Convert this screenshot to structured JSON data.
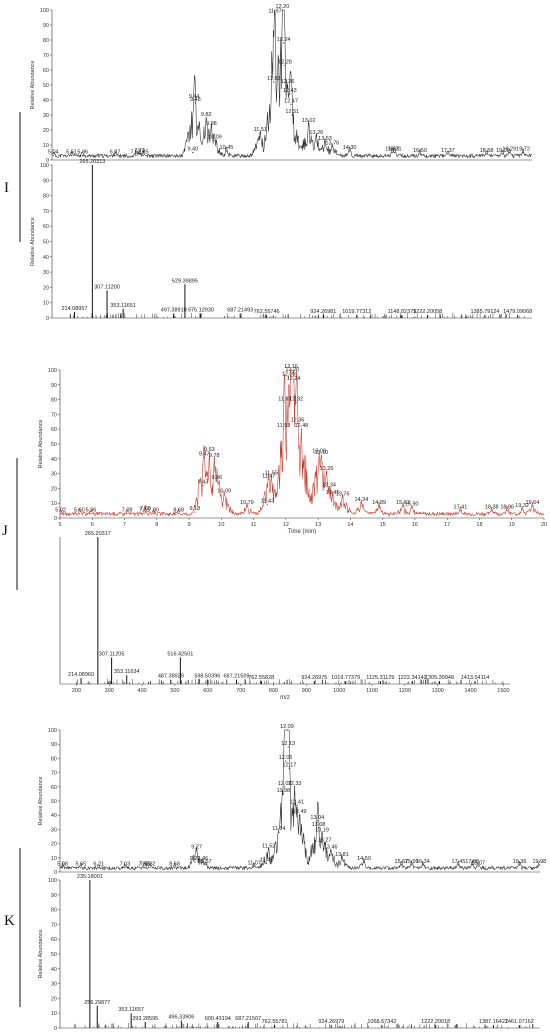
{
  "panels": [
    {
      "letter": "I",
      "bracket": "left"
    },
    {
      "letter": "J",
      "bracket": "left"
    },
    {
      "letter": "K",
      "bracket": "left"
    }
  ],
  "chart_data": [
    {
      "type": "line",
      "panel": "I",
      "role": "chromatogram",
      "ylabel": "Relative Abundance",
      "xlabel": "",
      "color": "#2a2a2a",
      "xlim": [
        5,
        20
      ],
      "ylim": [
        0,
        100
      ],
      "yticks": [
        0,
        10,
        20,
        30,
        40,
        50,
        60,
        70,
        80,
        90,
        100
      ],
      "xticks": [],
      "peaks": [
        {
          "x": 5.04,
          "y": 3,
          "label": "5.04"
        },
        {
          "x": 5.61,
          "y": 3,
          "label": "5.61"
        },
        {
          "x": 5.96,
          "y": 3,
          "label": "5.96"
        },
        {
          "x": 6.97,
          "y": 3,
          "label": "6.97"
        },
        {
          "x": 7.62,
          "y": 3,
          "label": "7.62"
        },
        {
          "x": 7.73,
          "y": 4,
          "label": "7.73"
        },
        {
          "x": 7.85,
          "y": 3,
          "label": "7.85"
        },
        {
          "x": 9.4,
          "y": 5,
          "label": "9.40"
        },
        {
          "x": 9.44,
          "y": 40,
          "label": "9.44"
        },
        {
          "x": 9.48,
          "y": 38,
          "label": "9.48"
        },
        {
          "x": 9.82,
          "y": 28,
          "label": "9.82"
        },
        {
          "x": 9.98,
          "y": 22,
          "label": "9.98"
        },
        {
          "x": 10.09,
          "y": 13,
          "label": "10.09"
        },
        {
          "x": 10.45,
          "y": 6,
          "label": "10.45"
        },
        {
          "x": 11.51,
          "y": 18,
          "label": "11.51"
        },
        {
          "x": 11.93,
          "y": 52,
          "label": "11.93"
        },
        {
          "x": 11.97,
          "y": 97,
          "label": "11.97"
        },
        {
          "x": 12.2,
          "y": 100,
          "label": "12.20"
        },
        {
          "x": 12.24,
          "y": 78,
          "label": "12.24"
        },
        {
          "x": 12.28,
          "y": 63,
          "label": "12.28"
        },
        {
          "x": 12.36,
          "y": 50,
          "label": "12.36"
        },
        {
          "x": 12.43,
          "y": 44,
          "label": "12.43"
        },
        {
          "x": 12.47,
          "y": 37,
          "label": "12.47"
        },
        {
          "x": 12.51,
          "y": 30,
          "label": "12.51"
        },
        {
          "x": 13.02,
          "y": 24,
          "label": "13.02"
        },
        {
          "x": 13.26,
          "y": 16,
          "label": "13.26"
        },
        {
          "x": 13.53,
          "y": 12,
          "label": "13.53"
        },
        {
          "x": 13.76,
          "y": 9,
          "label": "13.76"
        },
        {
          "x": 14.3,
          "y": 6,
          "label": "14.30"
        },
        {
          "x": 15.63,
          "y": 5,
          "label": "15.63"
        },
        {
          "x": 15.71,
          "y": 5,
          "label": "15.71"
        },
        {
          "x": 16.5,
          "y": 4,
          "label": "16.50"
        },
        {
          "x": 17.37,
          "y": 4,
          "label": "17.37"
        },
        {
          "x": 18.58,
          "y": 4,
          "label": "18.58"
        },
        {
          "x": 19.09,
          "y": 4,
          "label": "19.09"
        },
        {
          "x": 19.29,
          "y": 5,
          "label": "19.29"
        },
        {
          "x": 19.72,
          "y": 5,
          "label": "19.72"
        }
      ]
    },
    {
      "type": "bar",
      "panel": "I",
      "role": "mass-spectrum",
      "ylabel": "Relative Abundance",
      "xlabel": "",
      "color": "#111111",
      "xlim": [
        150,
        1520
      ],
      "ylim": [
        0,
        100
      ],
      "yticks": [
        0,
        10,
        20,
        30,
        40,
        50,
        60,
        70,
        80,
        90,
        100
      ],
      "xticks": [],
      "peaks": [
        {
          "x": 214.08957,
          "y": 4,
          "label": "214.08957"
        },
        {
          "x": 265.20313,
          "y": 100,
          "label": "265.20313"
        },
        {
          "x": 307.112,
          "y": 18,
          "label": "307.11200"
        },
        {
          "x": 353.11651,
          "y": 6,
          "label": "353.11651"
        },
        {
          "x": 497.3891,
          "y": 3,
          "label": "497.38910"
        },
        {
          "x": 529.39895,
          "y": 22,
          "label": "529.39895"
        },
        {
          "x": 575.1293,
          "y": 3,
          "label": "575.12930"
        },
        {
          "x": 687.21493,
          "y": 3,
          "label": "687.21493"
        },
        {
          "x": 762.55746,
          "y": 2,
          "label": "762.55746"
        },
        {
          "x": 924.26981,
          "y": 2,
          "label": "924.26981"
        },
        {
          "x": 1019.77312,
          "y": 2,
          "label": "1019.77312"
        },
        {
          "x": 1148.82379,
          "y": 2,
          "label": "1148.82379"
        },
        {
          "x": 1222.20058,
          "y": 2,
          "label": "1222.20058"
        },
        {
          "x": 1385.79124,
          "y": 2,
          "label": "1385.79124"
        },
        {
          "x": 1479.09068,
          "y": 2,
          "label": "1479.09068"
        }
      ]
    },
    {
      "type": "line",
      "panel": "J",
      "role": "chromatogram",
      "ylabel": "Relative Abundance",
      "xlabel": "Time (min)",
      "color": "#c0392b",
      "xlim": [
        5,
        20
      ],
      "ylim": [
        0,
        100
      ],
      "yticks": [
        0,
        10,
        20,
        30,
        40,
        50,
        60,
        70,
        80,
        90,
        100
      ],
      "xticks": [
        5,
        6,
        7,
        8,
        9,
        10,
        11,
        12,
        13,
        14,
        15,
        16,
        17,
        18,
        19,
        20
      ],
      "peaks": [
        {
          "x": 5.02,
          "y": 3,
          "label": "5.02"
        },
        {
          "x": 5.6,
          "y": 3,
          "label": "5.60"
        },
        {
          "x": 5.96,
          "y": 3,
          "label": "5.96"
        },
        {
          "x": 7.08,
          "y": 3,
          "label": "7.08"
        },
        {
          "x": 7.61,
          "y": 3,
          "label": "7.61"
        },
        {
          "x": 7.65,
          "y": 4,
          "label": "7.65"
        },
        {
          "x": 7.9,
          "y": 3,
          "label": "7.90"
        },
        {
          "x": 8.68,
          "y": 3,
          "label": "8.68"
        },
        {
          "x": 9.18,
          "y": 4,
          "label": "9.18"
        },
        {
          "x": 9.43,
          "y": 22,
          "label": "9.43"
        },
        {
          "x": 9.47,
          "y": 41,
          "label": "9.47"
        },
        {
          "x": 9.63,
          "y": 44,
          "label": "9.63"
        },
        {
          "x": 9.78,
          "y": 40,
          "label": "9.78"
        },
        {
          "x": 9.86,
          "y": 25,
          "label": "9.86"
        },
        {
          "x": 10.09,
          "y": 16,
          "label": "10.09"
        },
        {
          "x": 10.79,
          "y": 8,
          "label": "10.79"
        },
        {
          "x": 11.43,
          "y": 9,
          "label": "11.43"
        },
        {
          "x": 11.47,
          "y": 26,
          "label": "11.47"
        },
        {
          "x": 11.55,
          "y": 28,
          "label": "11.55"
        },
        {
          "x": 11.93,
          "y": 60,
          "label": "11.93"
        },
        {
          "x": 11.97,
          "y": 78,
          "label": "11.97"
        },
        {
          "x": 12.09,
          "y": 95,
          "label": "12.09"
        },
        {
          "x": 12.16,
          "y": 100,
          "label": "12.16"
        },
        {
          "x": 12.2,
          "y": 98,
          "label": "12.20"
        },
        {
          "x": 12.24,
          "y": 92,
          "label": "12.24"
        },
        {
          "x": 12.32,
          "y": 78,
          "label": "12.32"
        },
        {
          "x": 12.36,
          "y": 64,
          "label": "12.36"
        },
        {
          "x": 12.48,
          "y": 60,
          "label": "12.48"
        },
        {
          "x": 13.03,
          "y": 43,
          "label": "13.03"
        },
        {
          "x": 13.1,
          "y": 42,
          "label": "13.10"
        },
        {
          "x": 13.26,
          "y": 31,
          "label": "13.26"
        },
        {
          "x": 13.34,
          "y": 20,
          "label": "13.34"
        },
        {
          "x": 13.45,
          "y": 15,
          "label": "13.45"
        },
        {
          "x": 13.76,
          "y": 14,
          "label": "13.76"
        },
        {
          "x": 14.34,
          "y": 10,
          "label": "14.34"
        },
        {
          "x": 14.89,
          "y": 8,
          "label": "14.89"
        },
        {
          "x": 15.63,
          "y": 8,
          "label": "15.63"
        },
        {
          "x": 15.9,
          "y": 7,
          "label": "15.90"
        },
        {
          "x": 17.41,
          "y": 5,
          "label": "17.41"
        },
        {
          "x": 18.38,
          "y": 5,
          "label": "18.38"
        },
        {
          "x": 18.86,
          "y": 5,
          "label": "18.86"
        },
        {
          "x": 19.32,
          "y": 6,
          "label": "19.32"
        },
        {
          "x": 19.64,
          "y": 8,
          "label": "19.64"
        }
      ]
    },
    {
      "type": "bar",
      "panel": "J",
      "role": "mass-spectrum",
      "ylabel": "",
      "xlabel": "m/z",
      "color": "#111111",
      "xlim": [
        150,
        1520
      ],
      "ylim": [
        0,
        100
      ],
      "yticks": [],
      "xticks": [
        200,
        300,
        400,
        500,
        600,
        700,
        800,
        900,
        1000,
        1100,
        1200,
        1300,
        1400,
        1500
      ],
      "peaks": [
        {
          "x": 214.0896,
          "y": 4,
          "label": "214.08960"
        },
        {
          "x": 265.20317,
          "y": 100,
          "label": "265.20317"
        },
        {
          "x": 307.11205,
          "y": 18,
          "label": "307.11205"
        },
        {
          "x": 353.11634,
          "y": 6,
          "label": "353.11634"
        },
        {
          "x": 487.38929,
          "y": 3,
          "label": "487.38929"
        },
        {
          "x": 516.42501,
          "y": 18,
          "label": "516.42501"
        },
        {
          "x": 598.50396,
          "y": 3,
          "label": "598.50396"
        },
        {
          "x": 687.21509,
          "y": 3,
          "label": "687.21509"
        },
        {
          "x": 762.55828,
          "y": 2,
          "label": "762.55828"
        },
        {
          "x": 924.26975,
          "y": 2,
          "label": "924.26975"
        },
        {
          "x": 1019.77379,
          "y": 2,
          "label": "1019.77379"
        },
        {
          "x": 1125.31129,
          "y": 2,
          "label": "1125.31129"
        },
        {
          "x": 1222.34142,
          "y": 2,
          "label": "1222.34142"
        },
        {
          "x": 1305.39948,
          "y": 2,
          "label": "1305.39948"
        },
        {
          "x": 1413.54114,
          "y": 2,
          "label": "1413.54114"
        }
      ]
    },
    {
      "type": "line",
      "panel": "K",
      "role": "chromatogram",
      "ylabel": "Relative Abundance",
      "xlabel": "",
      "color": "#2a2a2a",
      "xlim": [
        5,
        20
      ],
      "ylim": [
        0,
        100
      ],
      "yticks": [
        0,
        10,
        20,
        30,
        40,
        50,
        60,
        70,
        80,
        90,
        100
      ],
      "xticks": [],
      "peaks": [
        {
          "x": 5.08,
          "y": 3,
          "label": "5.08"
        },
        {
          "x": 5.65,
          "y": 3,
          "label": "5.65"
        },
        {
          "x": 6.21,
          "y": 3,
          "label": "6.21"
        },
        {
          "x": 7.03,
          "y": 3,
          "label": "7.03"
        },
        {
          "x": 7.62,
          "y": 3,
          "label": "7.62"
        },
        {
          "x": 7.66,
          "y": 3,
          "label": "7.66"
        },
        {
          "x": 7.82,
          "y": 3,
          "label": "7.82"
        },
        {
          "x": 8.58,
          "y": 3,
          "label": "8.58"
        },
        {
          "x": 9.22,
          "y": 7,
          "label": "9.22"
        },
        {
          "x": 9.27,
          "y": 15,
          "label": "9.27"
        },
        {
          "x": 9.46,
          "y": 7,
          "label": "9.46"
        },
        {
          "x": 9.57,
          "y": 5,
          "label": "9.57"
        },
        {
          "x": 11.07,
          "y": 4,
          "label": "11.07"
        },
        {
          "x": 11.45,
          "y": 6,
          "label": "11.45"
        },
        {
          "x": 11.52,
          "y": 16,
          "label": "11.52"
        },
        {
          "x": 11.84,
          "y": 28,
          "label": "11.84"
        },
        {
          "x": 11.98,
          "y": 55,
          "label": "11.98"
        },
        {
          "x": 12.02,
          "y": 60,
          "label": "12.02"
        },
        {
          "x": 12.05,
          "y": 78,
          "label": "12.05"
        },
        {
          "x": 12.09,
          "y": 100,
          "label": "12.09"
        },
        {
          "x": 12.13,
          "y": 88,
          "label": "12.13"
        },
        {
          "x": 12.17,
          "y": 73,
          "label": "12.17"
        },
        {
          "x": 12.33,
          "y": 60,
          "label": "12.33"
        },
        {
          "x": 12.41,
          "y": 47,
          "label": "12.41"
        },
        {
          "x": 12.49,
          "y": 40,
          "label": "12.49"
        },
        {
          "x": 13.04,
          "y": 36,
          "label": "13.04"
        },
        {
          "x": 13.08,
          "y": 31,
          "label": "13.08"
        },
        {
          "x": 13.19,
          "y": 27,
          "label": "13.19"
        },
        {
          "x": 13.27,
          "y": 20,
          "label": "13.27"
        },
        {
          "x": 13.46,
          "y": 15,
          "label": "13.46"
        },
        {
          "x": 13.81,
          "y": 10,
          "label": "13.81"
        },
        {
          "x": 14.5,
          "y": 7,
          "label": "14.50"
        },
        {
          "x": 15.67,
          "y": 5,
          "label": "15.67"
        },
        {
          "x": 15.99,
          "y": 5,
          "label": "15.99"
        },
        {
          "x": 16.34,
          "y": 5,
          "label": "16.34"
        },
        {
          "x": 17.45,
          "y": 5,
          "label": "17.45"
        },
        {
          "x": 17.88,
          "y": 5,
          "label": "17.88"
        },
        {
          "x": 18.07,
          "y": 4,
          "label": "18.07"
        },
        {
          "x": 19.36,
          "y": 5,
          "label": "19.36"
        },
        {
          "x": 19.98,
          "y": 5,
          "label": "19.98"
        }
      ]
    },
    {
      "type": "bar",
      "panel": "K",
      "role": "mass-spectrum",
      "ylabel": "Relative Abundance",
      "xlabel": "",
      "color": "#111111",
      "xlim": [
        150,
        1520
      ],
      "ylim": [
        0,
        100
      ],
      "yticks": [
        0,
        10,
        20,
        30,
        40,
        50,
        60,
        70,
        80,
        90,
        100
      ],
      "xticks": [],
      "peaks": [
        {
          "x": 235.18001,
          "y": 100,
          "label": "235.18001"
        },
        {
          "x": 256.29877,
          "y": 15,
          "label": "256.29877"
        },
        {
          "x": 353.11657,
          "y": 10,
          "label": "353.11657"
        },
        {
          "x": 393.28595,
          "y": 4,
          "label": "393.28595"
        },
        {
          "x": 496.33906,
          "y": 5,
          "label": "496.33906"
        },
        {
          "x": 600.43194,
          "y": 4,
          "label": "600.43194"
        },
        {
          "x": 687.21507,
          "y": 4,
          "label": "687.21507"
        },
        {
          "x": 762.55781,
          "y": 2,
          "label": "762.55781"
        },
        {
          "x": 924.26979,
          "y": 2,
          "label": "924.26979"
        },
        {
          "x": 1068.67342,
          "y": 2,
          "label": "1068.67342"
        },
        {
          "x": 1222.20018,
          "y": 2,
          "label": "1222.20018"
        },
        {
          "x": 1387.16422,
          "y": 2,
          "label": "1387.16422"
        },
        {
          "x": 1461.07162,
          "y": 2,
          "label": "1461.07162"
        }
      ]
    }
  ]
}
